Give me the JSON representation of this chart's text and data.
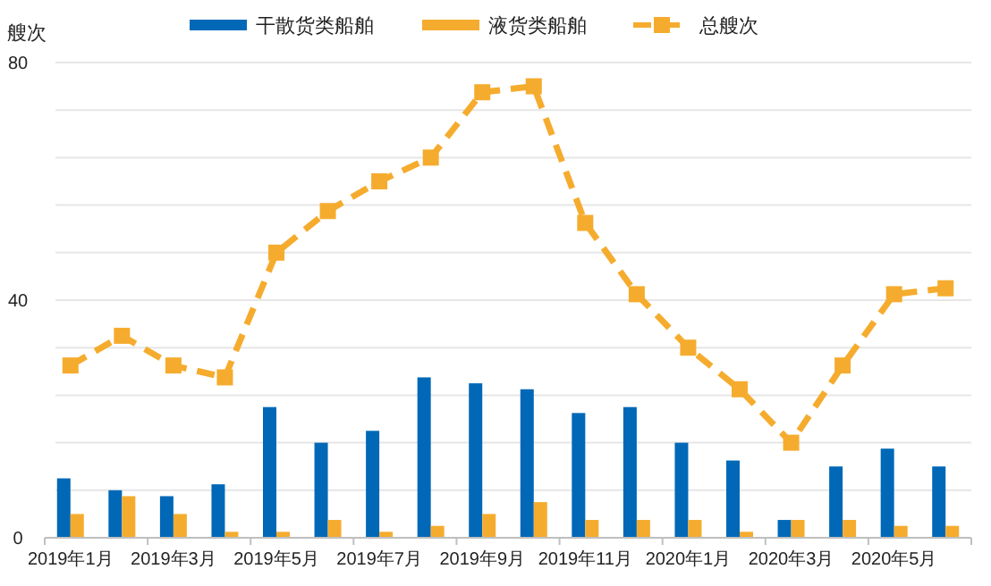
{
  "chart_data": {
    "type": "bar",
    "ylabel": "艘次",
    "categories": [
      "2019年1月",
      null,
      "2019年3月",
      null,
      "2019年5月",
      null,
      "2019年7月",
      null,
      "2019年9月",
      null,
      "2019年11月",
      null,
      "2020年1月",
      null,
      "2020年3月",
      null,
      "2020年5月",
      null
    ],
    "series": [
      {
        "name": "干散货类船舶",
        "color": "#0068b7",
        "values": [
          10,
          8,
          7,
          9,
          22,
          16,
          18,
          27,
          26,
          25,
          21,
          22,
          16,
          13,
          3,
          12,
          15,
          12
        ]
      },
      {
        "name": "液货类船舶",
        "color": "#f5ac2e",
        "values": [
          4,
          7,
          4,
          1,
          1,
          3,
          1,
          2,
          4,
          6,
          3,
          3,
          3,
          1,
          3,
          3,
          2,
          2
        ]
      },
      {
        "name": "总艘次",
        "type": "line",
        "color": "#f5ac2e",
        "marker": "square",
        "line_style": "dashed",
        "values": [
          29,
          34,
          29,
          27,
          48,
          55,
          60,
          64,
          75,
          76,
          53,
          41,
          32,
          25,
          16,
          29,
          41,
          42
        ]
      }
    ],
    "ylim": [
      0,
      80
    ],
    "yticks": [
      0,
      {
        "value": 8,
        "label": null
      },
      {
        "value": 16,
        "label": null
      },
      {
        "value": 24,
        "label": null
      },
      {
        "value": 32,
        "label": null
      },
      40,
      {
        "value": 48,
        "label": null
      },
      {
        "value": 56,
        "label": null
      },
      {
        "value": 64,
        "label": null
      },
      {
        "value": 72,
        "label": null
      },
      80
    ],
    "grid": "y",
    "legend": "top"
  }
}
